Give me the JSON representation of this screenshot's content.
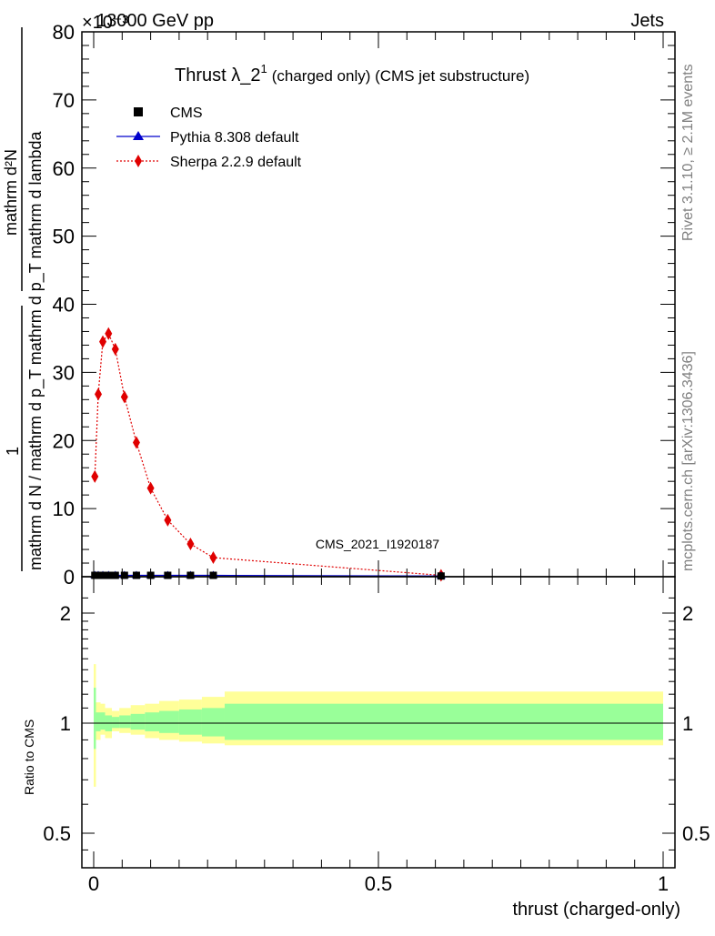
{
  "header": {
    "energy_label": "13000 GeV pp",
    "category_label": "Jets",
    "exponent_label": "×10⁻³"
  },
  "side_labels": {
    "rivet": "Rivet 3.1.10, ≥ 2.1M events",
    "mcplots": "mcplots.cern.ch [arXiv:1306.3436]"
  },
  "watermark": "CMS_2021_I1920187",
  "chart_data": [
    {
      "type": "line",
      "title": "Thrust λ_2¹ (charged only) (CMS jet substructure)",
      "title_main": "Thrust λ_2",
      "title_sup": "1",
      "title_rest": "(charged only) (CMS jet substructure)",
      "ylabel_numerator": "mathrm d²N",
      "ylabel_fraction_numerator": "1",
      "ylabel_fraction_denominator": "mathrm d N / mathrm d p_T mathrm d p_T mathrm d lambda",
      "xlabel": "thrust (charged-only)",
      "xlim": [
        0,
        1
      ],
      "ylim": [
        0,
        80
      ],
      "y_scale_note": "×10⁻³",
      "yticks": [
        0,
        10,
        20,
        30,
        40,
        50,
        60,
        70,
        80
      ],
      "xticks": [
        0,
        0.5,
        1
      ],
      "xtick_labels": [
        "0",
        "0.5",
        "1"
      ],
      "legend_position": "top-left",
      "series": [
        {
          "name": "CMS",
          "color": "#000000",
          "marker": "square",
          "x": [
            0.002,
            0.008,
            0.016,
            0.026,
            0.038,
            0.054,
            0.075,
            0.1,
            0.13,
            0.17,
            0.21,
            0.61
          ],
          "y": [
            0.2,
            0.2,
            0.2,
            0.2,
            0.2,
            0.2,
            0.2,
            0.2,
            0.2,
            0.2,
            0.2,
            0.1
          ]
        },
        {
          "name": "Pythia 8.308 default",
          "color": "#0000cc",
          "marker": "triangle",
          "x": [
            0.002,
            0.008,
            0.016,
            0.026,
            0.038,
            0.054,
            0.075,
            0.1,
            0.13,
            0.17,
            0.21,
            0.61
          ],
          "y": [
            0.2,
            0.2,
            0.2,
            0.2,
            0.2,
            0.2,
            0.2,
            0.2,
            0.2,
            0.2,
            0.2,
            0.1
          ]
        },
        {
          "name": "Sherpa 2.2.9 default",
          "color": "#e00000",
          "marker": "diamond",
          "x": [
            0.002,
            0.008,
            0.016,
            0.026,
            0.038,
            0.054,
            0.075,
            0.1,
            0.13,
            0.17,
            0.21,
            0.61
          ],
          "y": [
            14.7,
            26.8,
            34.5,
            35.7,
            33.4,
            26.4,
            19.7,
            13.0,
            8.3,
            4.8,
            2.8,
            0.2
          ],
          "yerr": [
            0.8,
            0.8,
            0.8,
            0.8,
            0.8,
            0.7,
            0.6,
            0.5,
            0.4,
            0.3,
            0.3,
            0.1
          ]
        }
      ]
    },
    {
      "type": "area",
      "ylabel": "Ratio to CMS",
      "xlim": [
        0,
        1
      ],
      "ylim": [
        0.4,
        2.3
      ],
      "yticks": [
        0.5,
        1,
        2
      ],
      "ytick_labels": [
        "0.5",
        "1",
        "2"
      ],
      "bands": {
        "edges": [
          0,
          0.004,
          0.012,
          0.02,
          0.032,
          0.045,
          0.065,
          0.09,
          0.115,
          0.15,
          0.19,
          0.23,
          1.0
        ],
        "green_lo": [
          0.85,
          0.95,
          0.96,
          0.95,
          0.97,
          0.97,
          0.96,
          0.95,
          0.94,
          0.93,
          0.92,
          0.9
        ],
        "green_hi": [
          1.25,
          1.07,
          1.07,
          1.05,
          1.04,
          1.05,
          1.06,
          1.07,
          1.08,
          1.09,
          1.1,
          1.13
        ],
        "yellow_lo": [
          0.67,
          0.9,
          0.93,
          0.91,
          0.95,
          0.94,
          0.93,
          0.91,
          0.9,
          0.89,
          0.88,
          0.87
        ],
        "yellow_hi": [
          1.45,
          1.14,
          1.13,
          1.1,
          1.08,
          1.1,
          1.12,
          1.13,
          1.15,
          1.16,
          1.18,
          1.22
        ]
      },
      "colors": {
        "green": "#99ff99",
        "yellow": "#ffff99"
      }
    }
  ]
}
